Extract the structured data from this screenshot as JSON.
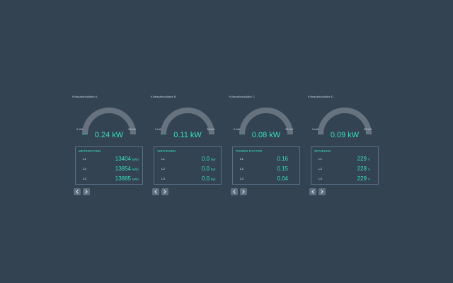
{
  "colors": {
    "background": "#344352",
    "accent": "#35e0be",
    "gauge_track": "#66737f",
    "panel_border": "#56708a",
    "text_muted": "#c9d1d8"
  },
  "units": [
    {
      "title": "Kilmaatinstallatie A",
      "gauge": {
        "min_label": "0 kW",
        "max_label": "38 kW",
        "value_label": "0.24 kW",
        "fraction": 0.006
      },
      "panel": {
        "title": "METERSTAND",
        "rows": [
          {
            "phase": "L1",
            "value": "13404",
            "unit": "kWh"
          },
          {
            "phase": "L2",
            "value": "13854",
            "unit": "kWh"
          },
          {
            "phase": "L3",
            "value": "13885",
            "unit": "kWh"
          }
        ]
      },
      "nav": {
        "prev_icon": "chevron-left-icon",
        "next_icon": "chevron-right-icon"
      }
    },
    {
      "title": "Kilmaatinstallatie B",
      "gauge": {
        "min_label": "0 kW",
        "max_label": "38 kW",
        "value_label": "0.11 kW",
        "fraction": 0.003
      },
      "panel": {
        "title": "VERHOGEN",
        "rows": [
          {
            "phase": "L1",
            "value": "0.0",
            "unit": "kW"
          },
          {
            "phase": "L2",
            "value": "0.0",
            "unit": "kW"
          },
          {
            "phase": "L3",
            "value": "0.0",
            "unit": "kW"
          }
        ]
      },
      "nav": {
        "prev_icon": "chevron-left-icon",
        "next_icon": "chevron-right-icon"
      }
    },
    {
      "title": "Kilmaatinstallatie C",
      "gauge": {
        "min_label": "0 kW",
        "max_label": "38 kW",
        "value_label": "0.08 kW",
        "fraction": 0.002
      },
      "panel": {
        "title": "POWER FACTOR",
        "rows": [
          {
            "phase": "L1",
            "value": "0.16",
            "unit": ""
          },
          {
            "phase": "L2",
            "value": "0.15",
            "unit": ""
          },
          {
            "phase": "L3",
            "value": "0.04",
            "unit": ""
          }
        ]
      },
      "nav": {
        "prev_icon": "chevron-left-icon",
        "next_icon": "chevron-right-icon"
      }
    },
    {
      "title": "Kilmaatinstallatie D",
      "gauge": {
        "min_label": "0 kW",
        "max_label": "38 kW",
        "value_label": "0.09 kW",
        "fraction": 0.002
      },
      "panel": {
        "title": "SPANNING",
        "rows": [
          {
            "phase": "L1",
            "value": "229",
            "unit": "V"
          },
          {
            "phase": "L2",
            "value": "228",
            "unit": "V"
          },
          {
            "phase": "L3",
            "value": "229",
            "unit": "V"
          }
        ]
      },
      "nav": {
        "prev_icon": "chevron-left-icon",
        "next_icon": "chevron-right-icon"
      }
    }
  ]
}
